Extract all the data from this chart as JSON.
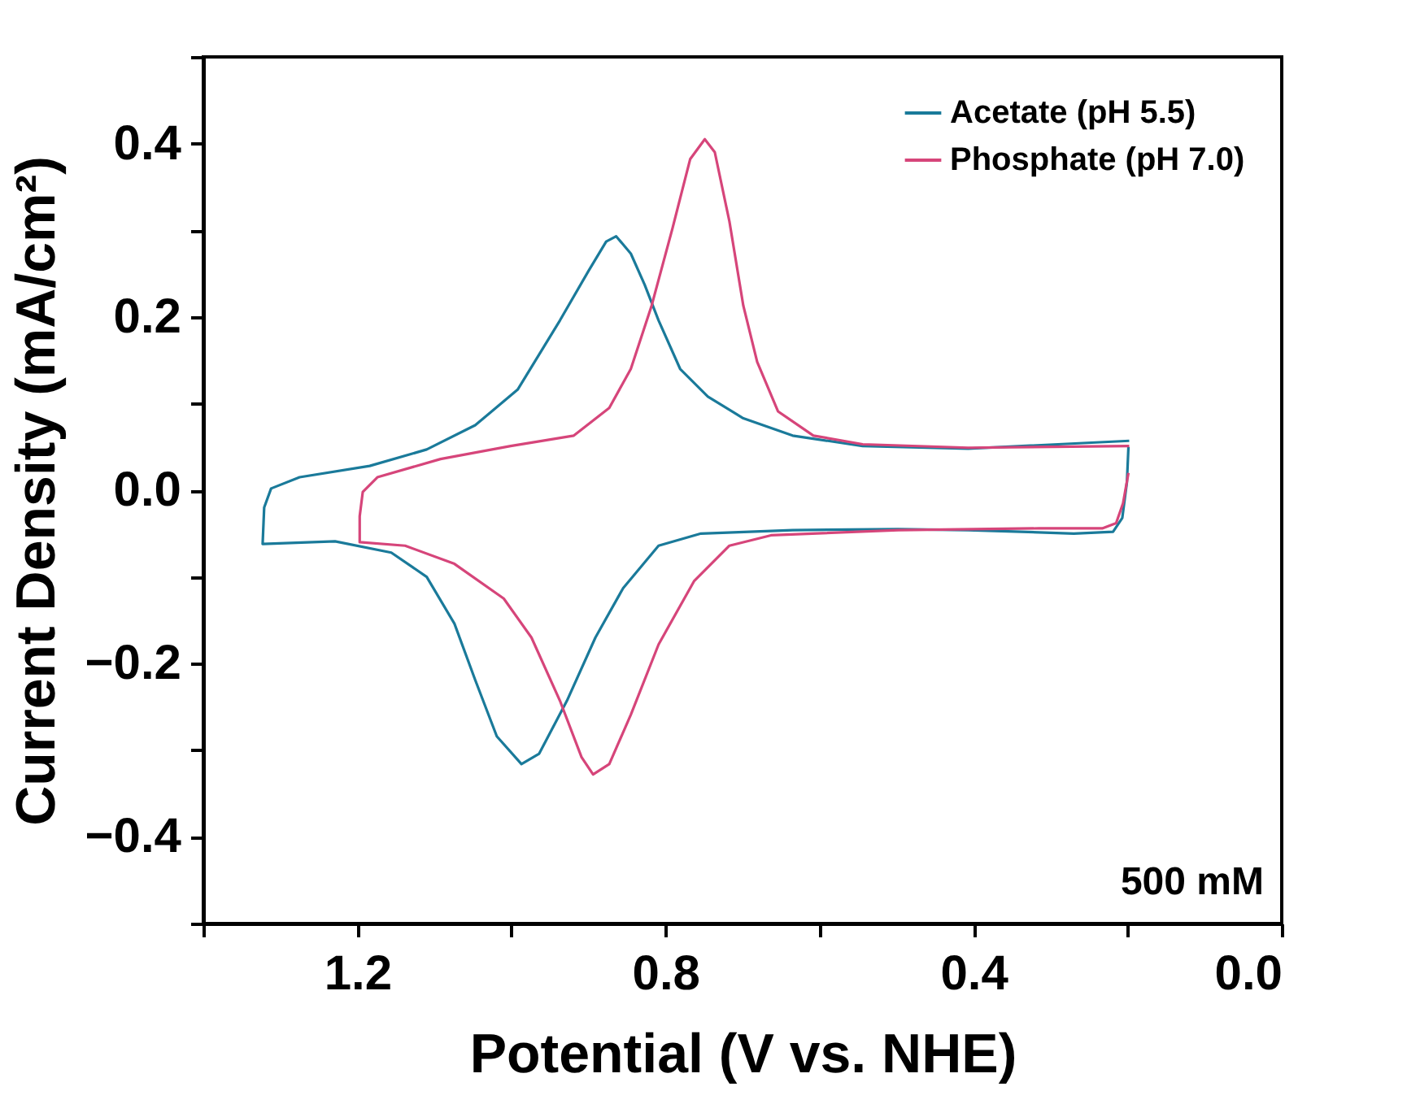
{
  "chart_data": {
    "type": "line",
    "xlabel": "Potential (V vs. NHE)",
    "ylabel": "Current Density (mA/cm²)",
    "xlim": [
      1.4,
      0.0
    ],
    "xticks": [
      {
        "value": 1.4,
        "label": null
      },
      1.2,
      {
        "value": 1.0,
        "label": null
      },
      0.8,
      {
        "value": 0.6,
        "label": null
      },
      0.4,
      {
        "value": 0.2,
        "label": null
      },
      {
        "value": 0.0,
        "label": "0.0"
      }
    ],
    "ylim": [
      -0.5,
      0.5
    ],
    "yticks": [
      {
        "value": -0.5,
        "label": null
      },
      -0.4,
      {
        "value": -0.3,
        "label": null
      },
      -0.2,
      {
        "value": -0.1,
        "label": null
      },
      {
        "value": 0.0,
        "label": "0.0"
      },
      {
        "value": 0.1,
        "label": null
      },
      0.2,
      {
        "value": 0.3,
        "label": null
      },
      0.4,
      {
        "value": 0.5,
        "label": null
      }
    ],
    "grid": false,
    "legend": "top right",
    "marker": "none",
    "line_style": "solid",
    "annotations": [
      "500 mM"
    ],
    "series": [
      {
        "name": "Acetate (pH 5.5)",
        "color": "#1a7a9a",
        "x": [
          0.198,
          0.407,
          0.544,
          0.635,
          0.699,
          0.745,
          0.781,
          0.809,
          0.827,
          0.845,
          0.864,
          0.877,
          0.9,
          0.937,
          0.992,
          1.047,
          1.11,
          1.184,
          1.275,
          1.312,
          1.321,
          1.323,
          1.229,
          1.156,
          1.11,
          1.074,
          1.047,
          1.019,
          0.987,
          0.964,
          0.928,
          0.891,
          0.855,
          0.809,
          0.754,
          0.635,
          0.498,
          0.407,
          0.27,
          0.219,
          0.207,
          0.201,
          0.199
        ],
        "values": [
          0.057,
          0.048,
          0.051,
          0.063,
          0.083,
          0.108,
          0.14,
          0.196,
          0.237,
          0.273,
          0.293,
          0.287,
          0.253,
          0.196,
          0.116,
          0.075,
          0.047,
          0.028,
          0.015,
          0.002,
          -0.02,
          -0.062,
          -0.059,
          -0.072,
          -0.1,
          -0.154,
          -0.219,
          -0.284,
          -0.316,
          -0.304,
          -0.243,
          -0.17,
          -0.113,
          -0.064,
          -0.05,
          -0.046,
          -0.045,
          -0.046,
          -0.05,
          -0.048,
          -0.032,
          0.009,
          0.05
        ]
      },
      {
        "name": "Phosphate (pH 7.0)",
        "color": "#d6457a",
        "x": [
          0.198,
          0.407,
          0.544,
          0.608,
          0.654,
          0.681,
          0.699,
          0.717,
          0.736,
          0.749,
          0.768,
          0.791,
          0.818,
          0.845,
          0.873,
          0.919,
          1.001,
          1.092,
          1.174,
          1.193,
          1.197,
          1.197,
          1.138,
          1.074,
          1.01,
          0.974,
          0.937,
          0.909,
          0.894,
          0.873,
          0.845,
          0.809,
          0.763,
          0.717,
          0.663,
          0.498,
          0.315,
          0.233,
          0.215,
          0.206,
          0.199
        ],
        "values": [
          0.051,
          0.049,
          0.053,
          0.063,
          0.091,
          0.148,
          0.213,
          0.31,
          0.39,
          0.405,
          0.382,
          0.302,
          0.213,
          0.14,
          0.095,
          0.063,
          0.051,
          0.036,
          0.015,
          -0.002,
          -0.03,
          -0.06,
          -0.064,
          -0.085,
          -0.125,
          -0.17,
          -0.243,
          -0.308,
          -0.328,
          -0.316,
          -0.259,
          -0.178,
          -0.105,
          -0.064,
          -0.052,
          -0.046,
          -0.044,
          -0.044,
          -0.038,
          -0.015,
          0.02
        ]
      }
    ]
  }
}
